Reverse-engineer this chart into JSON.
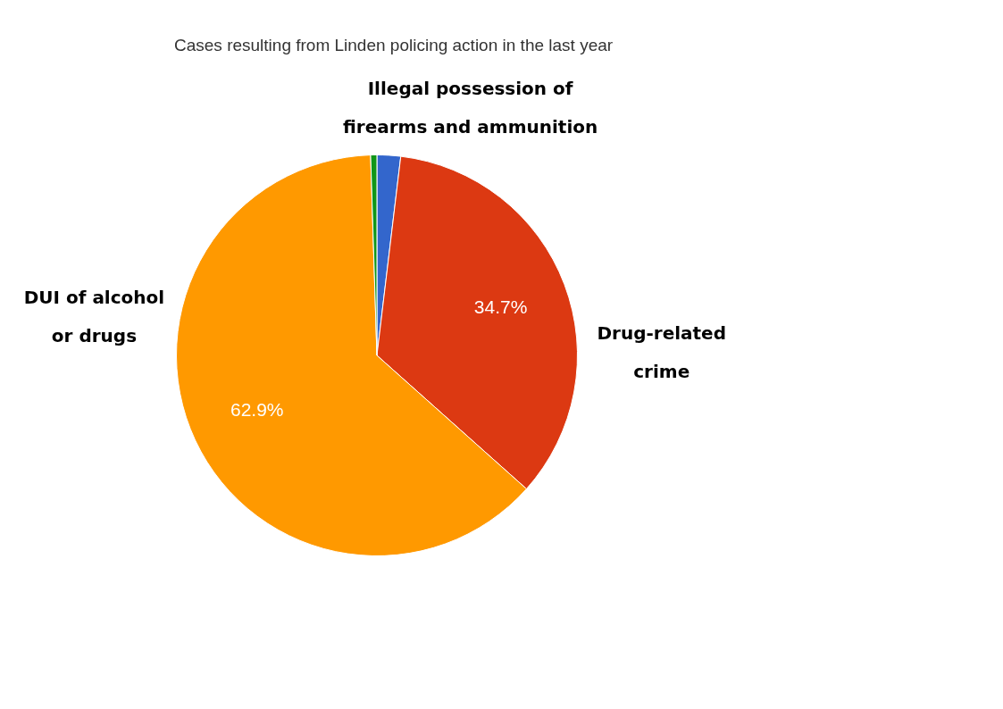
{
  "chart_data": {
    "type": "pie",
    "title": "Cases resulting from Linden policing action in the last year",
    "categories": [
      "Illegal possession of firearms and ammunition",
      "Drug-related crime",
      "DUI of alcohol or drugs",
      null
    ],
    "values": [
      1.9,
      34.7,
      62.9,
      0.5
    ],
    "colors": [
      "#3366cc",
      "#dc3912",
      "#ff9900",
      "#109618"
    ],
    "value_labels": [
      null,
      "34.7%",
      "62.9%",
      null
    ],
    "legend": false
  }
}
